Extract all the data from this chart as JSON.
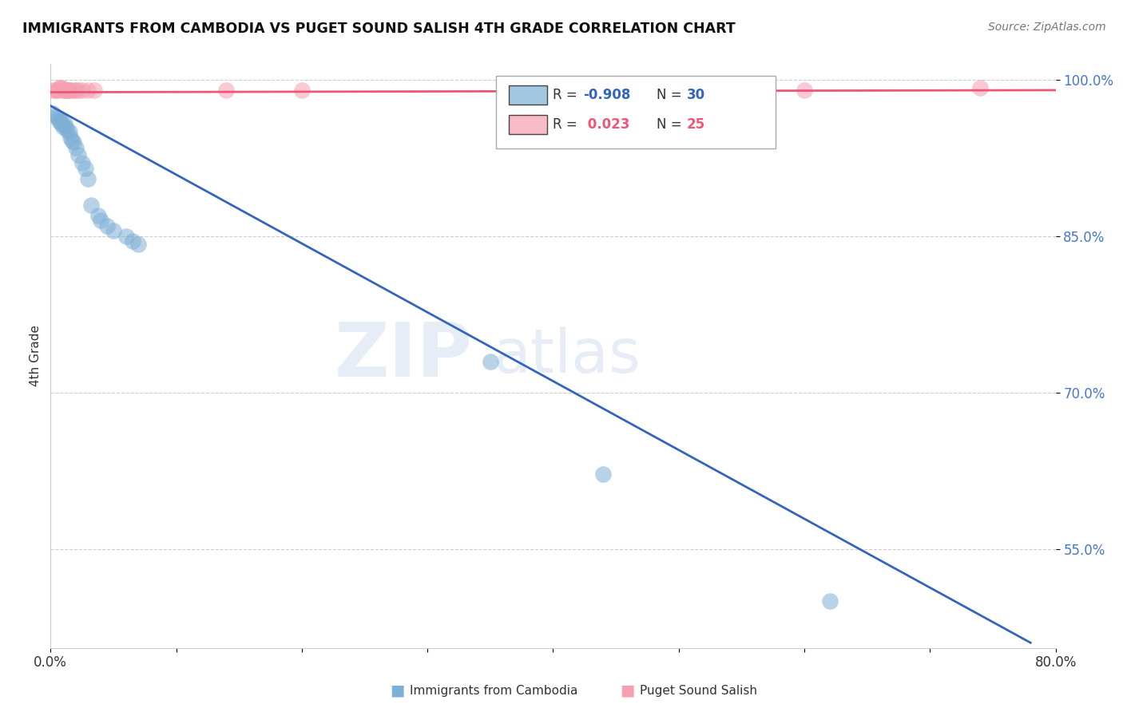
{
  "title": "IMMIGRANTS FROM CAMBODIA VS PUGET SOUND SALISH 4TH GRADE CORRELATION CHART",
  "source_text": "Source: ZipAtlas.com",
  "ylabel": "4th Grade",
  "xlim": [
    0.0,
    0.8
  ],
  "ylim": [
    0.455,
    1.015
  ],
  "xtick_values": [
    0.0,
    0.1,
    0.2,
    0.3,
    0.4,
    0.5,
    0.6,
    0.7,
    0.8
  ],
  "xtick_labels": [
    "0.0%",
    "",
    "",
    "",
    "",
    "",
    "",
    "",
    "80.0%"
  ],
  "ytick_values": [
    0.55,
    0.7,
    0.85,
    1.0
  ],
  "ytick_labels": [
    "55.0%",
    "70.0%",
    "85.0%",
    "100.0%"
  ],
  "blue_R": -0.908,
  "blue_N": 30,
  "pink_R": 0.023,
  "pink_N": 25,
  "blue_color": "#7EB0D5",
  "blue_line_color": "#3366BB",
  "pink_color": "#F5A0B0",
  "pink_line_color": "#EE5577",
  "legend_blue_label": "Immigrants from Cambodia",
  "legend_pink_label": "Puget Sound Salish",
  "blue_scatter_x": [
    0.002,
    0.004,
    0.006,
    0.007,
    0.008,
    0.009,
    0.01,
    0.011,
    0.012,
    0.013,
    0.015,
    0.016,
    0.017,
    0.018,
    0.02,
    0.022,
    0.025,
    0.028,
    0.03,
    0.032,
    0.038,
    0.04,
    0.045,
    0.05,
    0.06,
    0.065,
    0.07,
    0.35,
    0.44,
    0.62
  ],
  "blue_scatter_y": [
    0.968,
    0.965,
    0.963,
    0.96,
    0.96,
    0.958,
    0.955,
    0.958,
    0.955,
    0.952,
    0.95,
    0.945,
    0.942,
    0.94,
    0.935,
    0.928,
    0.92,
    0.915,
    0.905,
    0.88,
    0.87,
    0.865,
    0.86,
    0.855,
    0.85,
    0.845,
    0.842,
    0.73,
    0.622,
    0.5
  ],
  "pink_scatter_x": [
    0.002,
    0.004,
    0.005,
    0.006,
    0.007,
    0.008,
    0.009,
    0.01,
    0.011,
    0.012,
    0.013,
    0.014,
    0.015,
    0.016,
    0.018,
    0.02,
    0.022,
    0.025,
    0.03,
    0.035,
    0.14,
    0.2,
    0.42,
    0.6,
    0.74
  ],
  "pink_scatter_y": [
    0.99,
    0.99,
    0.99,
    0.99,
    0.992,
    0.992,
    0.992,
    0.99,
    0.99,
    0.99,
    0.99,
    0.99,
    0.99,
    0.99,
    0.99,
    0.99,
    0.99,
    0.99,
    0.99,
    0.99,
    0.99,
    0.99,
    0.99,
    0.99,
    0.992
  ],
  "blue_trend_x0": 0.0,
  "blue_trend_y0": 0.975,
  "blue_trend_x1": 0.78,
  "blue_trend_y1": 0.46,
  "pink_trend_x0": 0.0,
  "pink_trend_y0": 0.988,
  "pink_trend_x1": 0.8,
  "pink_trend_y1": 0.99
}
